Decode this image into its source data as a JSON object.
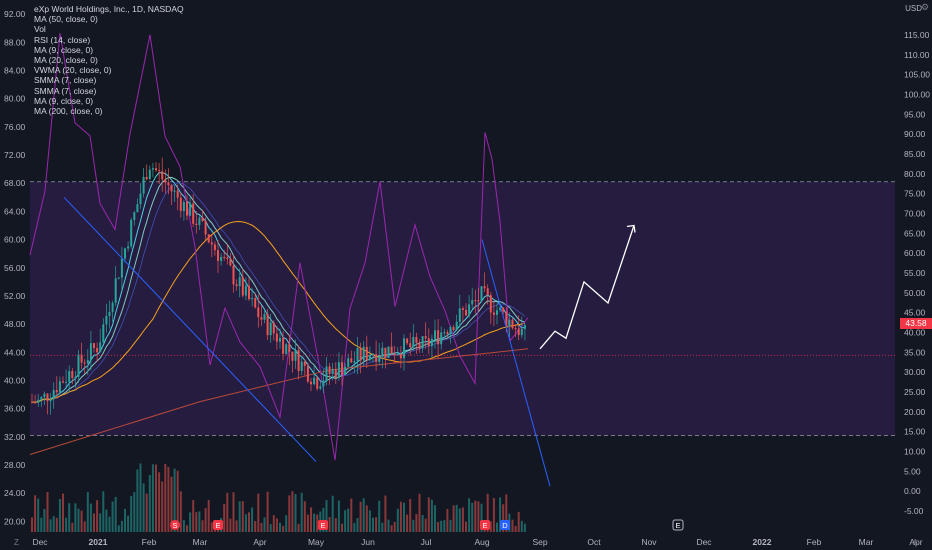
{
  "header": {
    "title": "eXp World Holdings, Inc., 1D, NASDAQ",
    "indicators": [
      "MA (50, close, 0)",
      "Vol",
      "RSI (14, close)",
      "MA (9, close, 0)",
      "MA (20, close, 0)",
      "VWMA (20, close, 0)",
      "SMMA (7, close)",
      "SMMA (7, close)",
      "MA (9, close, 0)",
      "MA (200, close, 0)"
    ]
  },
  "currency_label": "USD",
  "last_price_label": "43.58",
  "corner_left": "Z",
  "corner_right": "A",
  "event_markers": [
    "S",
    "E",
    "E",
    "E",
    "D",
    "E"
  ],
  "colors": {
    "background": "#131722",
    "band_fill": "#2a1d45",
    "up": "#26a69a",
    "down": "#ef5350",
    "rsi": "#9c27b0",
    "trendline": "#2962ff",
    "projection": "#ffffff",
    "ma_long": "#f7a21b",
    "ma200": "#b84a3a",
    "price_line": "#f23645"
  },
  "chart_data": {
    "type": "line",
    "title": "eXp World Holdings, Inc., 1D, NASDAQ",
    "xlabel": "",
    "ylabel": "",
    "x_ticks": [
      "Dec",
      "2021",
      "Feb",
      "Mar",
      "Apr",
      "May",
      "Jun",
      "Jul",
      "Aug",
      "Sep",
      "Oct",
      "Nov",
      "Dec",
      "2022",
      "Feb",
      "Mar",
      "Apr"
    ],
    "price_ticks": [
      "92.00",
      "88.00",
      "84.00",
      "80.00",
      "76.00",
      "72.00",
      "68.00",
      "64.00",
      "60.00",
      "56.00",
      "52.00",
      "48.00",
      "44.00",
      "40.00",
      "36.00",
      "32.00",
      "28.00",
      "24.00",
      "20.00"
    ],
    "rsi_ticks": [
      "115.00",
      "110.00",
      "105.00",
      "100.00",
      "95.00",
      "90.00",
      "85.00",
      "80.00",
      "75.00",
      "70.00",
      "65.00",
      "60.00",
      "55.00",
      "50.00",
      "45.00",
      "40.00",
      "35.00",
      "30.00",
      "25.00",
      "20.00",
      "15.00",
      "10.00",
      "5.00",
      "0.00",
      "-5.00"
    ],
    "price_range": [
      18.5,
      94
    ],
    "price_series": {
      "name": "Close",
      "x": [
        "Dec",
        "2021",
        "Feb",
        "Mar",
        "Apr",
        "May",
        "Jun",
        "Jul",
        "Aug",
        "Sep"
      ],
      "values": [
        37,
        45,
        71,
        62,
        49,
        40,
        44,
        45,
        52,
        44.5
      ]
    },
    "rsi_band": [
      78,
      14
    ],
    "trendlines": [
      {
        "from": [
          "May",
          28.5
        ],
        "to": [
          "Dec",
          66
        ]
      },
      {
        "from": [
          "Aug",
          60
        ],
        "to": [
          "Sep",
          25
        ]
      }
    ],
    "projection": [
      44.5,
      47,
      46,
      54,
      51,
      62
    ],
    "last_price": 43.58
  }
}
